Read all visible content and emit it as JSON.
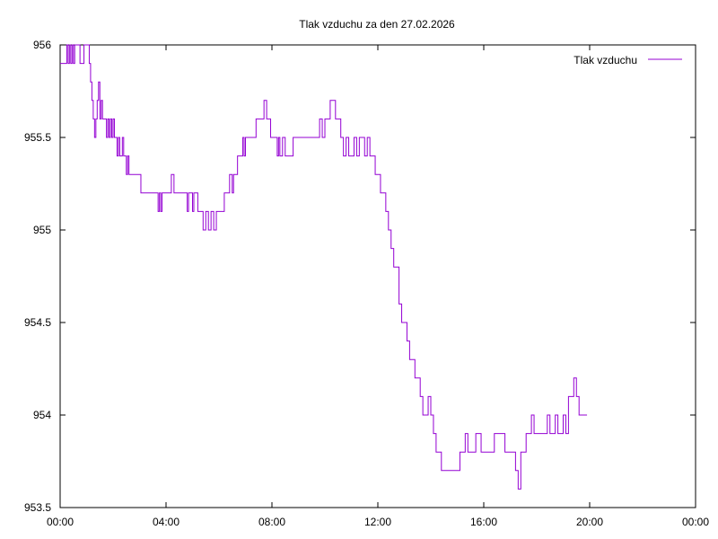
{
  "chart_data": {
    "type": "line",
    "title": "Tlak vzduchu za den 27.02.2026",
    "xlabel": "",
    "ylabel": "",
    "x_unit": "hours",
    "xlim": [
      0,
      24
    ],
    "ylim": [
      953.5,
      956
    ],
    "x_ticks": [
      {
        "value": 0,
        "label": "00:00"
      },
      {
        "value": 4,
        "label": "04:00"
      },
      {
        "value": 8,
        "label": "08:00"
      },
      {
        "value": 12,
        "label": "12:00"
      },
      {
        "value": 16,
        "label": "16:00"
      },
      {
        "value": 20,
        "label": "20:00"
      },
      {
        "value": 24,
        "label": "00:00"
      }
    ],
    "y_ticks": [
      {
        "value": 953.5,
        "label": "953.5"
      },
      {
        "value": 954,
        "label": "954"
      },
      {
        "value": 954.5,
        "label": "954.5"
      },
      {
        "value": 955,
        "label": "955"
      },
      {
        "value": 955.5,
        "label": "955.5"
      },
      {
        "value": 956,
        "label": "956"
      }
    ],
    "grid": false,
    "legend_position": "top-right",
    "series": [
      {
        "name": "Tlak vzduchu",
        "color": "#9400d3",
        "points": [
          [
            0.0,
            955.9
          ],
          [
            0.2,
            955.9
          ],
          [
            0.25,
            956.0
          ],
          [
            0.3,
            955.9
          ],
          [
            0.35,
            956.0
          ],
          [
            0.4,
            955.9
          ],
          [
            0.45,
            956.0
          ],
          [
            0.5,
            955.9
          ],
          [
            0.55,
            956.0
          ],
          [
            0.7,
            956.0
          ],
          [
            0.75,
            955.9
          ],
          [
            0.85,
            955.9
          ],
          [
            0.9,
            956.0
          ],
          [
            1.0,
            956.0
          ],
          [
            1.05,
            956.0
          ],
          [
            1.1,
            955.9
          ],
          [
            1.15,
            955.8
          ],
          [
            1.2,
            955.7
          ],
          [
            1.25,
            955.6
          ],
          [
            1.3,
            955.5
          ],
          [
            1.35,
            955.6
          ],
          [
            1.4,
            955.7
          ],
          [
            1.45,
            955.8
          ],
          [
            1.5,
            955.6
          ],
          [
            1.55,
            955.7
          ],
          [
            1.6,
            955.6
          ],
          [
            1.7,
            955.6
          ],
          [
            1.75,
            955.5
          ],
          [
            1.8,
            955.6
          ],
          [
            1.85,
            955.5
          ],
          [
            1.9,
            955.6
          ],
          [
            1.95,
            955.5
          ],
          [
            2.0,
            955.6
          ],
          [
            2.05,
            955.5
          ],
          [
            2.1,
            955.5
          ],
          [
            2.15,
            955.4
          ],
          [
            2.2,
            955.5
          ],
          [
            2.25,
            955.4
          ],
          [
            2.3,
            955.4
          ],
          [
            2.35,
            955.5
          ],
          [
            2.4,
            955.4
          ],
          [
            2.45,
            955.4
          ],
          [
            2.5,
            955.3
          ],
          [
            2.55,
            955.4
          ],
          [
            2.6,
            955.3
          ],
          [
            2.7,
            955.3
          ],
          [
            2.8,
            955.3
          ],
          [
            2.9,
            955.3
          ],
          [
            3.0,
            955.3
          ],
          [
            3.05,
            955.2
          ],
          [
            3.2,
            955.2
          ],
          [
            3.4,
            955.2
          ],
          [
            3.6,
            955.2
          ],
          [
            3.7,
            955.1
          ],
          [
            3.75,
            955.2
          ],
          [
            3.8,
            955.1
          ],
          [
            3.85,
            955.2
          ],
          [
            3.95,
            955.2
          ],
          [
            4.0,
            955.2
          ],
          [
            4.1,
            955.2
          ],
          [
            4.2,
            955.3
          ],
          [
            4.3,
            955.2
          ],
          [
            4.5,
            955.2
          ],
          [
            4.7,
            955.2
          ],
          [
            4.8,
            955.1
          ],
          [
            4.85,
            955.2
          ],
          [
            4.9,
            955.2
          ],
          [
            5.0,
            955.1
          ],
          [
            5.05,
            955.2
          ],
          [
            5.2,
            955.1
          ],
          [
            5.3,
            955.1
          ],
          [
            5.4,
            955.0
          ],
          [
            5.5,
            955.1
          ],
          [
            5.6,
            955.0
          ],
          [
            5.7,
            955.1
          ],
          [
            5.8,
            955.0
          ],
          [
            5.9,
            955.1
          ],
          [
            6.1,
            955.1
          ],
          [
            6.2,
            955.2
          ],
          [
            6.3,
            955.2
          ],
          [
            6.4,
            955.3
          ],
          [
            6.5,
            955.2
          ],
          [
            6.55,
            955.3
          ],
          [
            6.6,
            955.3
          ],
          [
            6.7,
            955.4
          ],
          [
            6.8,
            955.4
          ],
          [
            6.9,
            955.5
          ],
          [
            6.95,
            955.4
          ],
          [
            7.0,
            955.5
          ],
          [
            7.2,
            955.5
          ],
          [
            7.3,
            955.5
          ],
          [
            7.4,
            955.6
          ],
          [
            7.5,
            955.6
          ],
          [
            7.6,
            955.6
          ],
          [
            7.7,
            955.7
          ],
          [
            7.8,
            955.6
          ],
          [
            7.9,
            955.6
          ],
          [
            7.95,
            955.5
          ],
          [
            8.0,
            955.5
          ],
          [
            8.1,
            955.5
          ],
          [
            8.2,
            955.4
          ],
          [
            8.25,
            955.5
          ],
          [
            8.3,
            955.4
          ],
          [
            8.4,
            955.5
          ],
          [
            8.5,
            955.4
          ],
          [
            8.7,
            955.4
          ],
          [
            8.8,
            955.5
          ],
          [
            9.0,
            955.5
          ],
          [
            9.2,
            955.5
          ],
          [
            9.5,
            955.5
          ],
          [
            9.7,
            955.5
          ],
          [
            9.8,
            955.6
          ],
          [
            9.9,
            955.5
          ],
          [
            10.0,
            955.6
          ],
          [
            10.1,
            955.6
          ],
          [
            10.2,
            955.7
          ],
          [
            10.3,
            955.7
          ],
          [
            10.4,
            955.6
          ],
          [
            10.5,
            955.6
          ],
          [
            10.6,
            955.5
          ],
          [
            10.7,
            955.4
          ],
          [
            10.8,
            955.5
          ],
          [
            10.9,
            955.4
          ],
          [
            11.0,
            955.4
          ],
          [
            11.1,
            955.5
          ],
          [
            11.2,
            955.4
          ],
          [
            11.3,
            955.5
          ],
          [
            11.4,
            955.5
          ],
          [
            11.5,
            955.4
          ],
          [
            11.6,
            955.5
          ],
          [
            11.7,
            955.4
          ],
          [
            11.8,
            955.4
          ],
          [
            11.9,
            955.3
          ],
          [
            12.0,
            955.3
          ],
          [
            12.1,
            955.2
          ],
          [
            12.2,
            955.2
          ],
          [
            12.3,
            955.1
          ],
          [
            12.4,
            955.0
          ],
          [
            12.5,
            954.9
          ],
          [
            12.6,
            954.8
          ],
          [
            12.7,
            954.8
          ],
          [
            12.8,
            954.6
          ],
          [
            12.9,
            954.5
          ],
          [
            13.0,
            954.5
          ],
          [
            13.1,
            954.4
          ],
          [
            13.2,
            954.3
          ],
          [
            13.3,
            954.3
          ],
          [
            13.4,
            954.2
          ],
          [
            13.5,
            954.2
          ],
          [
            13.6,
            954.1
          ],
          [
            13.7,
            954.0
          ],
          [
            13.8,
            954.0
          ],
          [
            13.9,
            954.1
          ],
          [
            14.0,
            954.0
          ],
          [
            14.1,
            953.9
          ],
          [
            14.2,
            953.8
          ],
          [
            14.3,
            953.8
          ],
          [
            14.4,
            953.7
          ],
          [
            14.6,
            953.7
          ],
          [
            14.8,
            953.7
          ],
          [
            15.0,
            953.7
          ],
          [
            15.1,
            953.8
          ],
          [
            15.2,
            953.8
          ],
          [
            15.3,
            953.9
          ],
          [
            15.4,
            953.8
          ],
          [
            15.5,
            953.8
          ],
          [
            15.6,
            953.8
          ],
          [
            15.7,
            953.9
          ],
          [
            15.8,
            953.9
          ],
          [
            15.9,
            953.8
          ],
          [
            16.0,
            953.8
          ],
          [
            16.2,
            953.8
          ],
          [
            16.4,
            953.9
          ],
          [
            16.6,
            953.9
          ],
          [
            16.8,
            953.8
          ],
          [
            17.0,
            953.8
          ],
          [
            17.2,
            953.7
          ],
          [
            17.3,
            953.6
          ],
          [
            17.4,
            953.8
          ],
          [
            17.5,
            953.8
          ],
          [
            17.6,
            953.9
          ],
          [
            17.7,
            953.9
          ],
          [
            17.8,
            954.0
          ],
          [
            17.9,
            953.9
          ],
          [
            18.0,
            953.9
          ],
          [
            18.2,
            953.9
          ],
          [
            18.4,
            954.0
          ],
          [
            18.5,
            953.9
          ],
          [
            18.6,
            953.9
          ],
          [
            18.7,
            954.0
          ],
          [
            18.8,
            953.9
          ],
          [
            18.9,
            953.9
          ],
          [
            19.0,
            954.0
          ],
          [
            19.1,
            953.9
          ],
          [
            19.2,
            954.1
          ],
          [
            19.3,
            954.1
          ],
          [
            19.4,
            954.2
          ],
          [
            19.5,
            954.1
          ],
          [
            19.6,
            954.0
          ],
          [
            19.7,
            954.0
          ],
          [
            19.8,
            954.0
          ],
          [
            19.9,
            954.0
          ]
        ]
      }
    ]
  }
}
